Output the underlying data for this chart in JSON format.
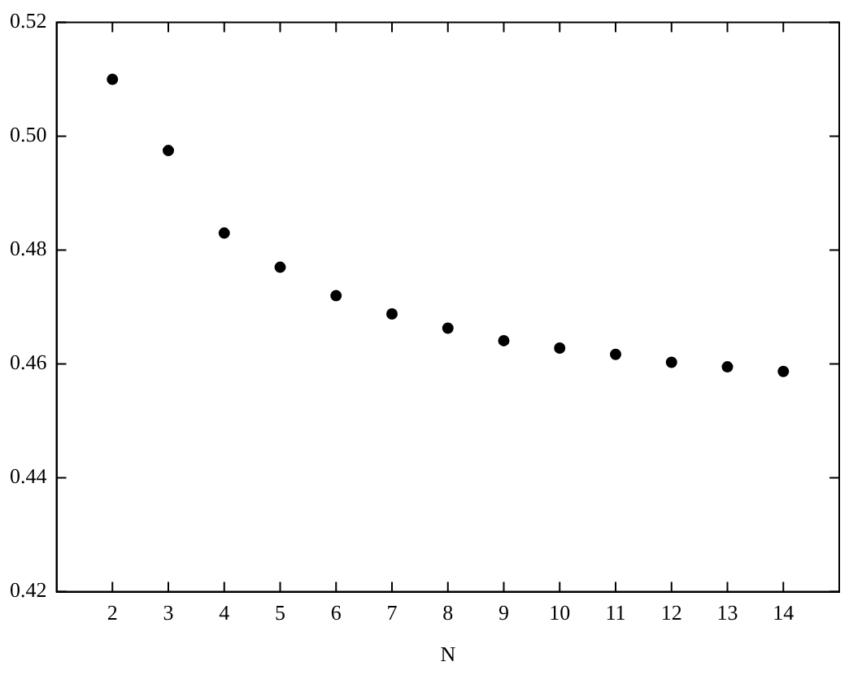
{
  "chart_data": {
    "type": "scatter",
    "xlabel": "N",
    "x": [
      2,
      3,
      4,
      5,
      6,
      7,
      8,
      9,
      10,
      11,
      12,
      13,
      14
    ],
    "series": [
      {
        "color": "#000000",
        "values": [
          0.51,
          0.4975,
          0.483,
          0.477,
          0.472,
          0.4688,
          0.4663,
          0.4641,
          0.4628,
          0.4617,
          0.4603,
          0.4595,
          0.4587
        ]
      }
    ],
    "xlim": [
      1,
      15
    ],
    "xticks": [
      2,
      3,
      4,
      5,
      6,
      7,
      8,
      9,
      10,
      11,
      12,
      13,
      14
    ],
    "ylim": [
      0.42,
      0.52
    ],
    "yticks": [
      0.42,
      0.44,
      0.46,
      0.48,
      {
        "value": 0.5,
        "label": "0.50"
      },
      0.52
    ],
    "marker": "circle",
    "grid": false,
    "legend": false
  }
}
